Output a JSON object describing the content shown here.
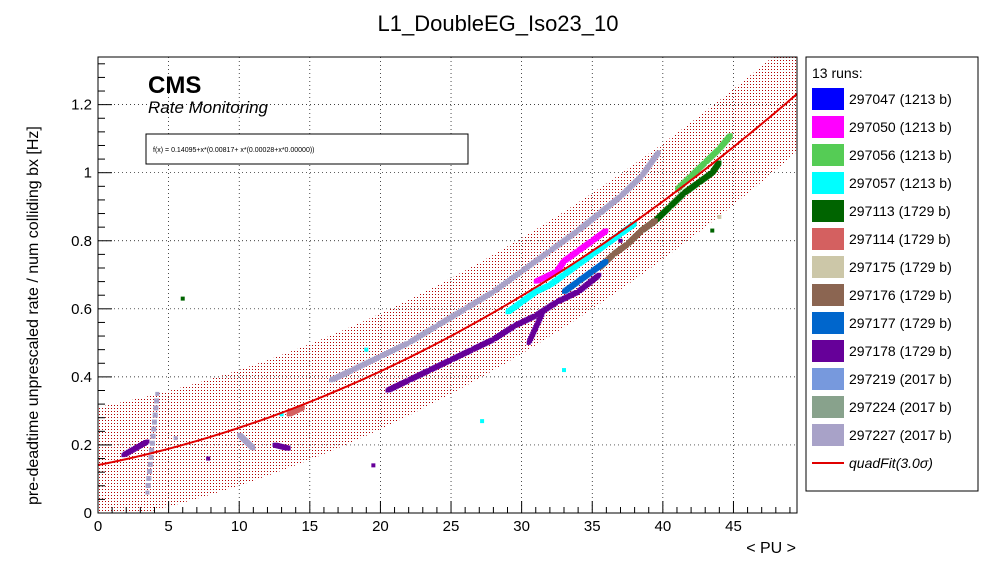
{
  "chart_data": {
    "type": "scatter",
    "title": "L1_DoubleEG_Iso23_10",
    "xlabel": "< PU >",
    "ylabel": "pre-deadtime unprescaled rate / num colliding bx [Hz]",
    "xlim": [
      0,
      49.5
    ],
    "ylim": [
      0,
      1.34
    ],
    "xticks": [
      0,
      5,
      10,
      15,
      20,
      25,
      30,
      35,
      40,
      45
    ],
    "yticks": [
      0,
      0.2,
      0.4,
      0.6,
      0.8,
      1,
      1.2
    ],
    "grid": true,
    "experiment_label": "CMS",
    "experiment_sublabel": "Rate Monitoring",
    "fit_equation": "f(x) = 0.14095+x*(0.00817+ x*(0.00028+x*0.00000))",
    "fit": {
      "name": "quadFit(3.0σ)",
      "coefficients": [
        0.14095,
        0.00817,
        0.00028
      ],
      "band_halfwidth": 0.17,
      "color": "#e00000",
      "band_color": "#c00000"
    },
    "legend_header": "13 runs:",
    "legend_position": "right",
    "series": [
      {
        "name": "297047 (1213 b)",
        "color": "#0000ff",
        "points": []
      },
      {
        "name": "297050 (1213 b)",
        "color": "#ff00ff",
        "points": [
          [
            31.0,
            0.68
          ],
          [
            32.5,
            0.71
          ],
          [
            33.0,
            0.74
          ],
          [
            34.0,
            0.77
          ],
          [
            35.0,
            0.8
          ],
          [
            36.0,
            0.83
          ]
        ]
      },
      {
        "name": "297056 (1213 b)",
        "color": "#55cc55",
        "points": [
          [
            41.0,
            0.95
          ],
          [
            42.0,
            0.99
          ],
          [
            43.0,
            1.03
          ],
          [
            44.0,
            1.07
          ],
          [
            44.8,
            1.11
          ]
        ]
      },
      {
        "name": "297057 (1213 b)",
        "color": "#00ffff",
        "points": [
          [
            29.0,
            0.59
          ],
          [
            30.0,
            0.62
          ],
          [
            31.0,
            0.65
          ],
          [
            32.0,
            0.67
          ],
          [
            33.0,
            0.7
          ],
          [
            34.0,
            0.73
          ],
          [
            35.0,
            0.76
          ],
          [
            36.0,
            0.79
          ],
          [
            37.0,
            0.82
          ],
          [
            38.0,
            0.85
          ],
          [
            13.0,
            0.29
          ],
          [
            19.0,
            0.48
          ],
          [
            27.2,
            0.27
          ],
          [
            33.0,
            0.42
          ]
        ]
      },
      {
        "name": "297113 (1729 b)",
        "color": "#006400",
        "points": [
          [
            38.5,
            0.83
          ],
          [
            39.5,
            0.86
          ],
          [
            40.5,
            0.9
          ],
          [
            41.5,
            0.94
          ],
          [
            42.5,
            0.97
          ],
          [
            43.5,
            1.0
          ],
          [
            44.0,
            1.03
          ],
          [
            43.5,
            0.83
          ],
          [
            6.0,
            0.63
          ]
        ]
      },
      {
        "name": "297114 (1729 b)",
        "color": "#d46060",
        "points": [
          [
            13.5,
            0.29
          ],
          [
            14.5,
            0.31
          ]
        ]
      },
      {
        "name": "297175 (1729 b)",
        "color": "#ccc7a8",
        "points": [
          [
            44.0,
            0.87
          ]
        ]
      },
      {
        "name": "297176 (1729 b)",
        "color": "#8b6551",
        "points": [
          [
            35.5,
            0.72
          ],
          [
            36.5,
            0.76
          ],
          [
            37.5,
            0.79
          ],
          [
            38.5,
            0.83
          ],
          [
            39.5,
            0.86
          ]
        ]
      },
      {
        "name": "297177 (1729 b)",
        "color": "#0066cc",
        "points": [
          [
            33.0,
            0.65
          ],
          [
            34.0,
            0.68
          ],
          [
            35.0,
            0.71
          ],
          [
            36.0,
            0.74
          ]
        ]
      },
      {
        "name": "297178 (1729 b)",
        "color": "#660099",
        "points": [
          [
            20.5,
            0.36
          ],
          [
            22.0,
            0.39
          ],
          [
            23.5,
            0.42
          ],
          [
            25.0,
            0.45
          ],
          [
            26.5,
            0.48
          ],
          [
            28.0,
            0.51
          ],
          [
            29.5,
            0.55
          ],
          [
            31.0,
            0.58
          ],
          [
            32.5,
            0.62
          ],
          [
            34.0,
            0.65
          ],
          [
            35.5,
            0.7
          ],
          [
            1.8,
            0.17
          ],
          [
            3.5,
            0.21
          ],
          [
            7.8,
            0.16
          ],
          [
            12.5,
            0.2
          ],
          [
            13.5,
            0.19
          ],
          [
            19.5,
            0.14
          ],
          [
            30.5,
            0.5
          ],
          [
            31.5,
            0.59
          ],
          [
            37.0,
            0.8
          ]
        ]
      },
      {
        "name": "297219 (2017 b)",
        "color": "#7799dd",
        "points": []
      },
      {
        "name": "297224 (2017 b)",
        "color": "#88a28c",
        "points": []
      },
      {
        "name": "297227 (2017 b)",
        "color": "#a8a2c8",
        "points": [
          [
            16.5,
            0.39
          ],
          [
            18.0,
            0.42
          ],
          [
            20.0,
            0.46
          ],
          [
            22.0,
            0.5
          ],
          [
            24.0,
            0.55
          ],
          [
            26.0,
            0.6
          ],
          [
            28.0,
            0.65
          ],
          [
            30.0,
            0.71
          ],
          [
            32.0,
            0.77
          ],
          [
            34.0,
            0.83
          ],
          [
            35.5,
            0.88
          ],
          [
            37.0,
            0.93
          ],
          [
            38.5,
            0.99
          ],
          [
            39.7,
            1.06
          ],
          [
            3.5,
            0.06
          ],
          [
            4.2,
            0.35
          ],
          [
            10.0,
            0.23
          ],
          [
            11.0,
            0.19
          ],
          [
            5.5,
            0.22
          ]
        ]
      }
    ]
  }
}
